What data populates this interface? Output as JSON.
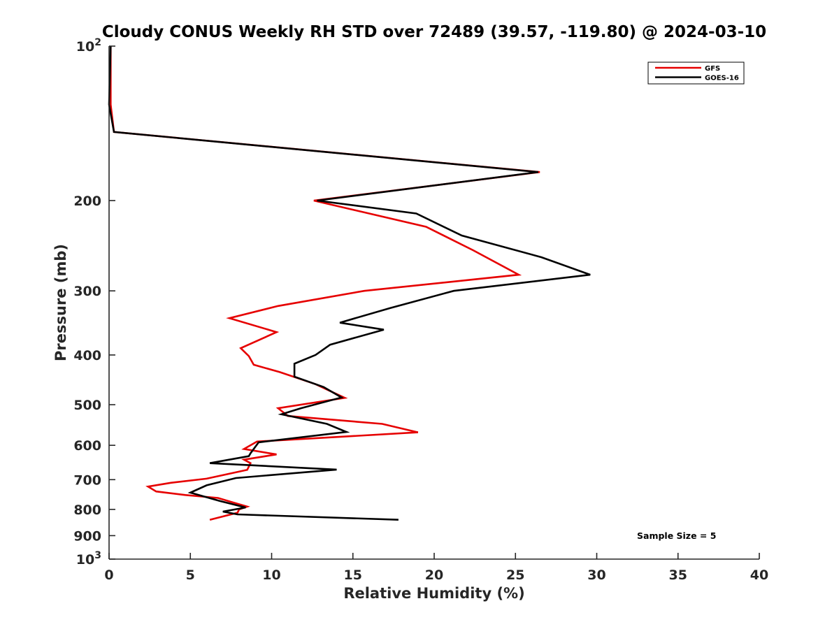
{
  "chart_data": {
    "type": "line",
    "title": "Cloudy CONUS Weekly RH STD over 72489 (39.57, -119.80) @ 2024-03-10",
    "xlabel": "Relative Humidity (%)",
    "ylabel": "Pressure (mb)",
    "xlim": [
      0,
      40
    ],
    "ylim": [
      100,
      1000
    ],
    "y_scale": "log",
    "y_reversed": true,
    "grid": false,
    "legend_position": "top-right",
    "x_ticks": [
      "0",
      "5",
      "10",
      "15",
      "20",
      "25",
      "30",
      "35",
      "40"
    ],
    "y_ticks": [
      {
        "value": 100,
        "base": "10",
        "exp": "2"
      },
      {
        "value": 200,
        "label": "200"
      },
      {
        "value": 300,
        "label": "300"
      },
      {
        "value": 400,
        "label": "400"
      },
      {
        "value": 500,
        "label": "500"
      },
      {
        "value": 600,
        "label": "600"
      },
      {
        "value": 700,
        "label": "700"
      },
      {
        "value": 800,
        "label": "800"
      },
      {
        "value": 900,
        "label": "900"
      },
      {
        "value": 1000,
        "base": "10",
        "exp": "3"
      }
    ],
    "series": [
      {
        "name": "GFS",
        "color": "#e60000",
        "points": [
          [
            6.2,
            838
          ],
          [
            7.9,
            812
          ],
          [
            8.0,
            800
          ],
          [
            8.5,
            790
          ],
          [
            7.6,
            775
          ],
          [
            6.7,
            760
          ],
          [
            4.7,
            750
          ],
          [
            2.9,
            738
          ],
          [
            2.4,
            722
          ],
          [
            3.8,
            710
          ],
          [
            6.0,
            697
          ],
          [
            8.5,
            670
          ],
          [
            8.7,
            650
          ],
          [
            8.3,
            640
          ],
          [
            10.3,
            625
          ],
          [
            8.3,
            610
          ],
          [
            9.1,
            590
          ],
          [
            19.0,
            566
          ],
          [
            16.8,
            545
          ],
          [
            11.0,
            526
          ],
          [
            10.4,
            508
          ],
          [
            14.5,
            485
          ],
          [
            12.7,
            456
          ],
          [
            10.5,
            432
          ],
          [
            8.9,
            418
          ],
          [
            8.6,
            402
          ],
          [
            8.1,
            388
          ],
          [
            10.3,
            361
          ],
          [
            7.4,
            339
          ],
          [
            10.4,
            321
          ],
          [
            15.7,
            300
          ],
          [
            25.2,
            279
          ],
          [
            22.4,
            250
          ],
          [
            19.5,
            225
          ],
          [
            12.6,
            200
          ],
          [
            26.5,
            176
          ],
          [
            0.3,
            147
          ],
          [
            0.1,
            130
          ],
          [
            0.1,
            100
          ]
        ]
      },
      {
        "name": "GOES-16",
        "color": "#000000",
        "points": [
          [
            17.8,
            838
          ],
          [
            7.9,
            818
          ],
          [
            7.0,
            808
          ],
          [
            8.4,
            793
          ],
          [
            6.8,
            770
          ],
          [
            5.0,
            742
          ],
          [
            6.0,
            718
          ],
          [
            7.8,
            695
          ],
          [
            14.0,
            669
          ],
          [
            6.2,
            650
          ],
          [
            8.6,
            630
          ],
          [
            8.7,
            622
          ],
          [
            9.2,
            592
          ],
          [
            14.6,
            565
          ],
          [
            13.4,
            545
          ],
          [
            10.6,
            522
          ],
          [
            11.8,
            508
          ],
          [
            14.3,
            484
          ],
          [
            13.2,
            462
          ],
          [
            11.4,
            441
          ],
          [
            11.4,
            416
          ],
          [
            12.7,
            400
          ],
          [
            13.6,
            382
          ],
          [
            16.9,
            357
          ],
          [
            14.2,
            346
          ],
          [
            17.3,
            324
          ],
          [
            21.2,
            300
          ],
          [
            29.6,
            279
          ],
          [
            26.6,
            258
          ],
          [
            21.7,
            234
          ],
          [
            18.9,
            212
          ],
          [
            12.8,
            200
          ],
          [
            26.4,
            176
          ],
          [
            0.3,
            147
          ],
          [
            0.0,
            130
          ],
          [
            0.1,
            100
          ]
        ]
      }
    ],
    "annotations": [
      "Sample Size = 5"
    ]
  }
}
